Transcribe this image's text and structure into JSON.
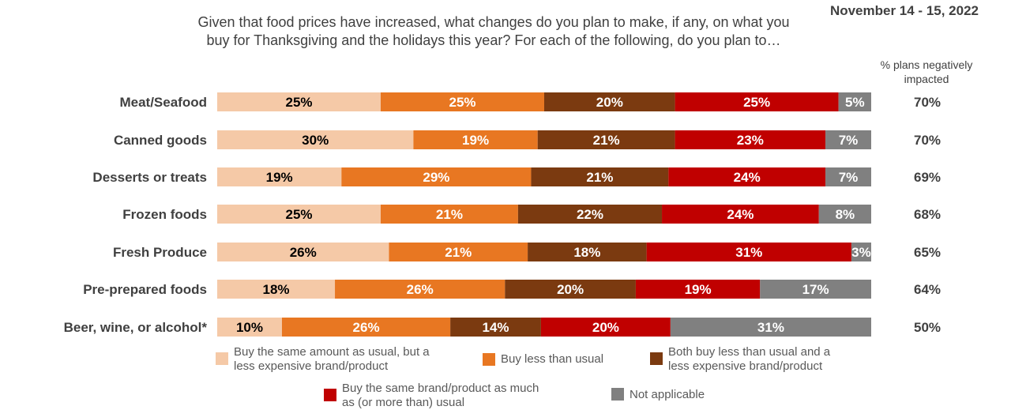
{
  "header": {
    "date": "November 14 - 15, 2022",
    "question": "Given that food prices have increased, what changes do you plan to make, if any, on what you buy for Thanksgiving and the holidays this year? For each of the following, do you plan to…",
    "column_header": "% plans negatively impacted"
  },
  "chart_data": {
    "type": "bar",
    "orientation": "horizontal",
    "stacked": true,
    "categories": [
      "Meat/Seafood",
      "Canned goods",
      "Desserts or treats",
      "Frozen foods",
      "Fresh Produce",
      "Pre-prepared foods",
      "Beer, wine, or alcohol*"
    ],
    "series": [
      {
        "name": "Buy the same amount as usual, but a less expensive brand/product",
        "color": "#F5C9A7",
        "values": [
          25,
          30,
          19,
          25,
          26,
          18,
          10
        ]
      },
      {
        "name": "Buy less than usual",
        "color": "#E87722",
        "values": [
          25,
          19,
          29,
          21,
          21,
          26,
          26
        ]
      },
      {
        "name": "Both buy less than usual and a less expensive brand/product",
        "color": "#7B3A10",
        "values": [
          20,
          21,
          21,
          22,
          18,
          20,
          14
        ]
      },
      {
        "name": "Buy the same brand/product as much as (or more than) usual",
        "color": "#C00000",
        "values": [
          25,
          23,
          24,
          24,
          31,
          19,
          20
        ]
      },
      {
        "name": "Not applicable",
        "color": "#808080",
        "values": [
          5,
          7,
          7,
          8,
          3,
          17,
          31
        ]
      }
    ],
    "negatively_impacted": [
      "70%",
      "70%",
      "69%",
      "68%",
      "65%",
      "64%",
      "50%"
    ],
    "legend_position": "bottom",
    "grid": false
  },
  "legend": {
    "items": [
      {
        "line1": "Buy the same amount as usual, but a",
        "line2": "less expensive brand/product",
        "color": "#F5C9A7"
      },
      {
        "line1": "Buy less than usual",
        "line2": "",
        "color": "#E87722"
      },
      {
        "line1": "Both buy less than usual and a",
        "line2": "less expensive brand/product",
        "color": "#7B3A10"
      },
      {
        "line1": "Buy the same brand/product as much",
        "line2": "as (or more than) usual",
        "color": "#C00000"
      },
      {
        "line1": "Not applicable",
        "line2": "",
        "color": "#808080"
      }
    ]
  }
}
